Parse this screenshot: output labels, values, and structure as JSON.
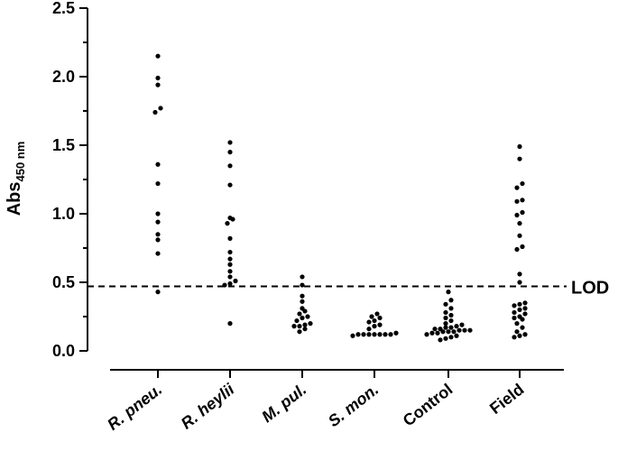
{
  "chart_data": {
    "type": "scatter",
    "categories": [
      "R. pneu.",
      "R. heylii",
      "M. pul.",
      "S. mon.",
      "Control",
      "Field"
    ],
    "category_italic": [
      true,
      true,
      true,
      true,
      false,
      false
    ],
    "ylabel_main": "Abs",
    "ylabel_sub": "450 nm",
    "ylim": [
      0,
      2.5
    ],
    "yticks": [
      "0.0",
      "0.5",
      "1.0",
      "1.5",
      "2.0",
      "2.5"
    ],
    "lod_value": 0.47,
    "lod_label": "LOD",
    "series": [
      {
        "values": [
          2.15,
          1.99,
          1.94,
          1.77,
          1.74,
          1.36,
          1.22,
          1.0,
          0.94,
          0.85,
          0.81,
          0.71,
          0.43
        ]
      },
      {
        "values": [
          1.52,
          1.45,
          1.35,
          1.21,
          0.97,
          0.96,
          0.93,
          0.82,
          0.72,
          0.67,
          0.63,
          0.58,
          0.54,
          0.51,
          0.49,
          0.48,
          0.2
        ]
      },
      {
        "values": [
          0.54,
          0.48,
          0.4,
          0.36,
          0.31,
          0.29,
          0.27,
          0.25,
          0.24,
          0.22,
          0.2,
          0.19,
          0.18,
          0.18,
          0.16,
          0.14
        ]
      },
      {
        "values": [
          0.27,
          0.25,
          0.24,
          0.22,
          0.21,
          0.19,
          0.18,
          0.16,
          0.13,
          0.12,
          0.12,
          0.12,
          0.12,
          0.12,
          0.12,
          0.12,
          0.11
        ]
      },
      {
        "values": [
          0.43,
          0.37,
          0.34,
          0.31,
          0.28,
          0.26,
          0.24,
          0.22,
          0.2,
          0.19,
          0.18,
          0.17,
          0.17,
          0.16,
          0.16,
          0.15,
          0.15,
          0.15,
          0.14,
          0.14,
          0.14,
          0.13,
          0.13,
          0.12,
          0.11,
          0.1,
          0.09,
          0.08
        ]
      },
      {
        "values": [
          1.49,
          1.4,
          1.22,
          1.19,
          1.1,
          1.09,
          1.01,
          0.99,
          0.93,
          0.84,
          0.76,
          0.74,
          0.56,
          0.5,
          0.35,
          0.34,
          0.33,
          0.31,
          0.3,
          0.28,
          0.27,
          0.25,
          0.24,
          0.23,
          0.2,
          0.17,
          0.14,
          0.12,
          0.11,
          0.1
        ]
      }
    ]
  }
}
